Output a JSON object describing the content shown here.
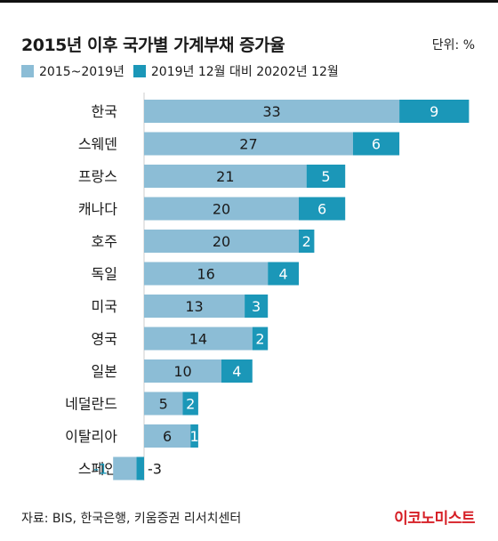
{
  "header": {
    "title": "2015년 이후 국가별 가계부채 증가율",
    "unit": "단위: %"
  },
  "colors": {
    "series1": "#8cbdd6",
    "series2": "#1b97b8",
    "axis": "#cccccc"
  },
  "chart_data": {
    "type": "bar",
    "orientation": "horizontal",
    "stacked": true,
    "categories": [
      "한국",
      "스웨덴",
      "프랑스",
      "캐나다",
      "호주",
      "독일",
      "미국",
      "영국",
      "일본",
      "네덜란드",
      "이탈리아",
      "스페인"
    ],
    "series": [
      {
        "name": "2015~2019년",
        "values": [
          33,
          27,
          21,
          20,
          20,
          16,
          13,
          14,
          10,
          5,
          6,
          -3
        ]
      },
      {
        "name": "2019년 12월 대비 20202년 12월",
        "values": [
          9,
          6,
          5,
          6,
          2,
          4,
          3,
          2,
          4,
          2,
          1,
          -1
        ]
      }
    ],
    "title": "2015년 이후 국가별 가계부채 증가율",
    "xlabel": "",
    "ylabel": "",
    "legend": "top-left",
    "grid": false
  },
  "footer": {
    "source": "자료: BIS, 한국은행, 키움증권 리서치센터",
    "brand": "이코노미스트"
  }
}
